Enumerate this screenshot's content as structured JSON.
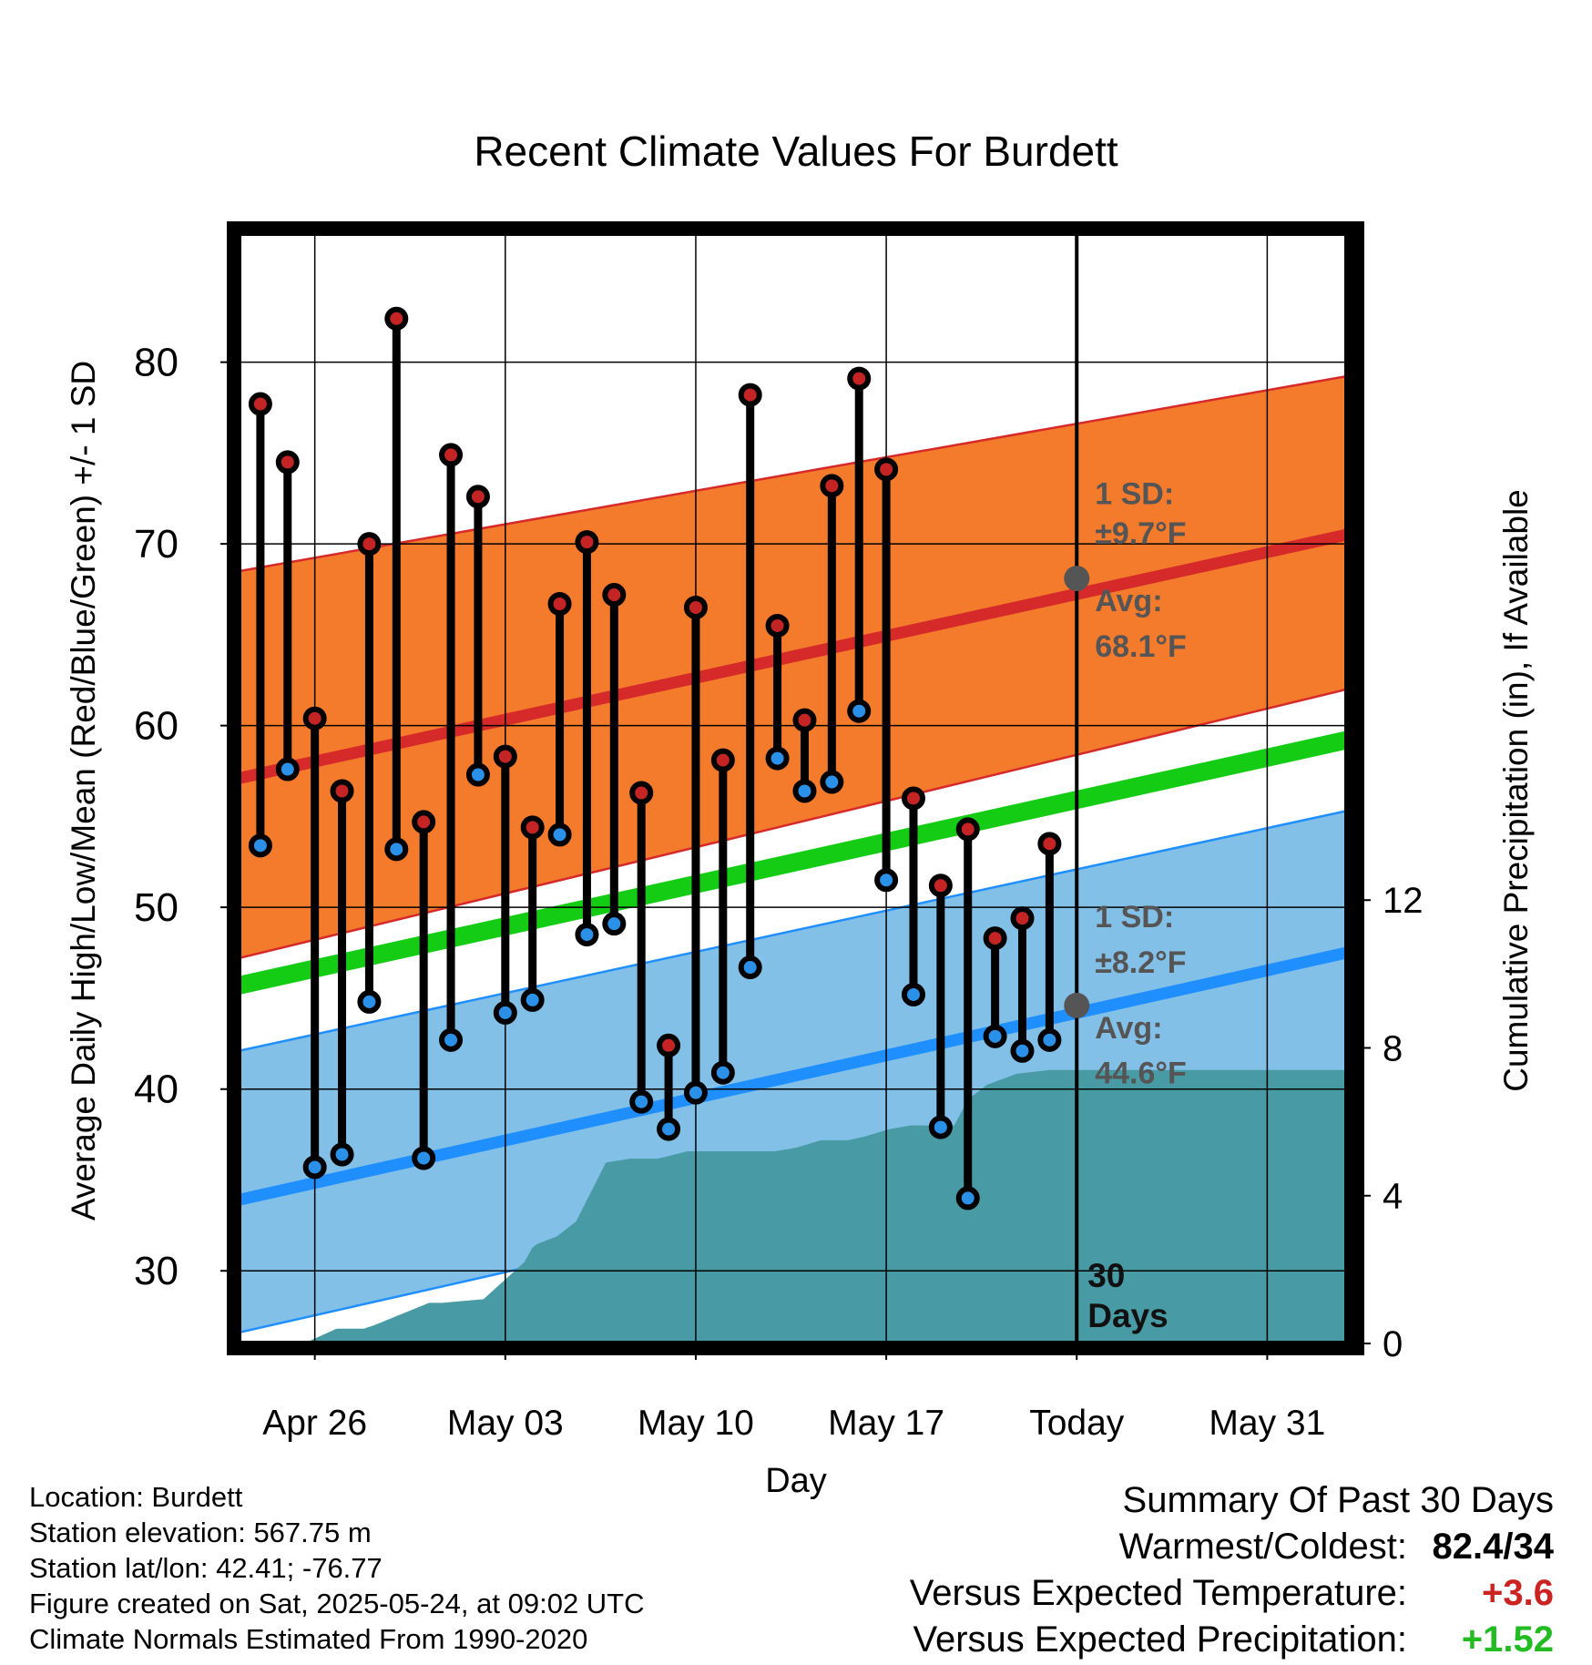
{
  "chart_data": {
    "type": "line",
    "title": "Recent Climate Values For Burdett",
    "xlabel": "Day",
    "ylabel": "Average Daily High/Low/Mean (Red/Blue/Green) +/- 1 SD",
    "y2label": "Cumulative Precipitation (in), If Available",
    "xlim_days": [
      -30.8,
      10.2
    ],
    "ylim": [
      26,
      87
    ],
    "y2lim": [
      0,
      30
    ],
    "y_ticks": [
      30,
      40,
      50,
      60,
      70,
      80
    ],
    "y2_ticks": [
      0,
      4,
      8,
      12
    ],
    "x_ticks": [
      {
        "day": -28,
        "label": "Apr 26"
      },
      {
        "day": -21,
        "label": "May 03"
      },
      {
        "day": -14,
        "label": "May 10"
      },
      {
        "day": -7,
        "label": "May 17"
      },
      {
        "day": 0,
        "label": "Today"
      },
      {
        "day": 7,
        "label": "May 31"
      }
    ],
    "grid": true,
    "today_marker": {
      "day": 0,
      "label": "30 Days"
    },
    "colors": {
      "high_band": "#f47a2c",
      "high_avg": "#d62a2a",
      "low_band": "#82c0e8",
      "low_avg": "#1f8fff",
      "mean": "#13cc13",
      "precip": "#489aa5",
      "high_point": "#c42424",
      "low_point": "#2a90e8"
    },
    "normals": {
      "x": [
        -30.8,
        10.2
      ],
      "high_avg": [
        57.1,
        70.6
      ],
      "high_sd_upper": [
        68.5,
        79.3
      ],
      "high_sd_lower": [
        47.2,
        62.1
      ],
      "mean_avg": [
        45.7,
        59.3
      ],
      "low_avg": [
        33.9,
        47.6
      ],
      "low_sd_upper": [
        42.1,
        55.4
      ],
      "low_sd_lower": [
        26.6,
        40.5
      ]
    },
    "annotations": {
      "high_sd": "1 SD:",
      "high_sd_value": "±9.7°F",
      "high_avg_label": "Avg:",
      "high_avg_value": "68.1°F",
      "high_avg_today": 68.1,
      "low_sd": "1 SD:",
      "low_sd_value": "±8.2°F",
      "low_avg_label": "Avg:",
      "low_avg_value": "44.6°F",
      "low_avg_today": 44.6
    },
    "series": [
      {
        "name": "High",
        "x": [
          -30,
          -29,
          -28,
          -27,
          -26,
          -25,
          -24,
          -23,
          -22,
          -21,
          -20,
          -19,
          -18,
          -17,
          -16,
          -15,
          -14,
          -13,
          -12,
          -11,
          -10,
          -9,
          -8,
          -7,
          -6,
          -5,
          -4,
          -3,
          -2,
          -1
        ],
        "values": [
          77.7,
          74.5,
          60.4,
          56.4,
          70.0,
          82.4,
          54.7,
          74.9,
          72.6,
          58.3,
          54.4,
          66.7,
          70.1,
          67.2,
          56.3,
          42.4,
          66.5,
          58.1,
          78.2,
          65.5,
          60.3,
          73.2,
          79.1,
          74.1,
          56.0,
          51.2,
          54.3,
          48.3,
          49.4,
          53.5
        ]
      },
      {
        "name": "Low",
        "x": [
          -30,
          -29,
          -28,
          -27,
          -26,
          -25,
          -24,
          -23,
          -22,
          -21,
          -20,
          -19,
          -18,
          -17,
          -16,
          -15,
          -14,
          -13,
          -12,
          -11,
          -10,
          -9,
          -8,
          -7,
          -6,
          -5,
          -4,
          -3,
          -2,
          -1
        ],
        "values": [
          53.4,
          57.6,
          35.7,
          36.4,
          44.8,
          53.2,
          36.2,
          42.7,
          57.3,
          44.2,
          44.9,
          54.0,
          48.5,
          49.1,
          39.3,
          37.8,
          39.8,
          40.9,
          46.7,
          58.2,
          56.4,
          56.9,
          60.8,
          51.5,
          45.2,
          37.9,
          34.0,
          42.9,
          42.1,
          42.7
        ]
      },
      {
        "name": "Cumulative Precipitation",
        "axis": "y2",
        "x": [
          -28.4,
          -27.2,
          -26.9,
          -26.2,
          -25.8,
          -23.8,
          -23.3,
          -21.8,
          -20.3,
          -20.0,
          -19.8,
          -19.1,
          -18.4,
          -17.3,
          -16.4,
          -15.4,
          -14.3,
          -12.2,
          -11.1,
          -10.3,
          -9.4,
          -8.4,
          -7.8,
          -6.9,
          -6.1,
          -5.8,
          -4.5,
          -4.0,
          -3.3,
          -2.2,
          -1.0,
          0.3,
          10.2
        ],
        "values": [
          0.0,
          0.4,
          0.4,
          0.4,
          0.5,
          1.1,
          1.1,
          1.2,
          2.2,
          2.6,
          2.7,
          2.9,
          3.3,
          4.9,
          5.0,
          5.0,
          5.2,
          5.2,
          5.2,
          5.3,
          5.5,
          5.5,
          5.6,
          5.8,
          5.9,
          5.9,
          5.9,
          6.6,
          7.0,
          7.3,
          7.4,
          7.4,
          7.4
        ]
      }
    ]
  },
  "footer": {
    "location": "Location: Burdett",
    "elevation": "Station elevation: 567.75 m",
    "latlon": "Station lat/lon: 42.41; -76.77",
    "created": "Figure created on Sat, 2025-05-24, at 09:02 UTC",
    "normals": "Climate Normals Estimated From 1990-2020"
  },
  "summary": {
    "heading": "Summary Of Past 30 Days",
    "warmest_label": "Warmest/Coldest:",
    "warmest_value": "82.4/34",
    "temp_label": "Versus Expected Temperature:",
    "temp_value": "+3.6",
    "temp_color": "#cc2222",
    "precip_label": "Versus Expected Precipitation:",
    "precip_value": "+1.52",
    "precip_color": "#22bb22"
  }
}
